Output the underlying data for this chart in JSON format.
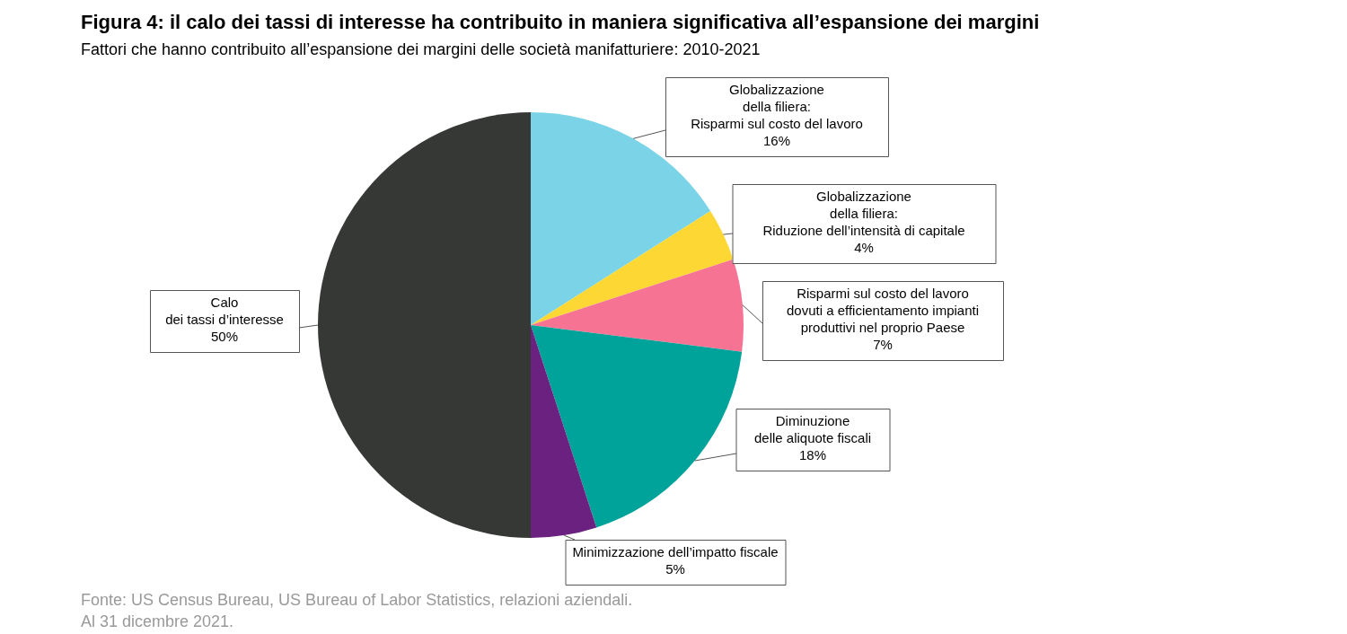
{
  "chart_data": {
    "type": "pie",
    "title": "Figura 4: il calo dei tassi di interesse ha contribuito in maniera significativa all’espansione dei margini",
    "subtitle": "Fattori che hanno contribuito all’espansione dei margini delle società manifatturiere: 2010-2021",
    "categories": [
      "Globalizzazione\ndella filiera:\nRisparmi sul costo del lavoro",
      "Globalizzazione\ndella filiera:\nRiduzione dell’intensità di capitale",
      "Risparmi sul costo del lavoro\ndovuti a efficientamento impianti\nproduttivi nel proprio Paese",
      "Diminuzione\ndelle aliquote fiscali",
      "Minimizzazione dell’impatto fiscale",
      "Calo\ndei tassi d’interesse"
    ],
    "values": [
      16,
      4,
      7,
      18,
      5,
      50
    ],
    "value_labels": [
      "16%",
      "4%",
      "7%",
      "18%",
      "5%",
      "50%"
    ],
    "colors": [
      "#7ad3e6",
      "#fdd835",
      "#f77394",
      "#00a39a",
      "#6a2180",
      "#363836"
    ],
    "legend": false,
    "annotations": [
      "Fonte: US Census Bureau, US Bureau of Labor Statistics, relazioni aziendali.",
      "Al 31 dicembre 2021."
    ]
  }
}
